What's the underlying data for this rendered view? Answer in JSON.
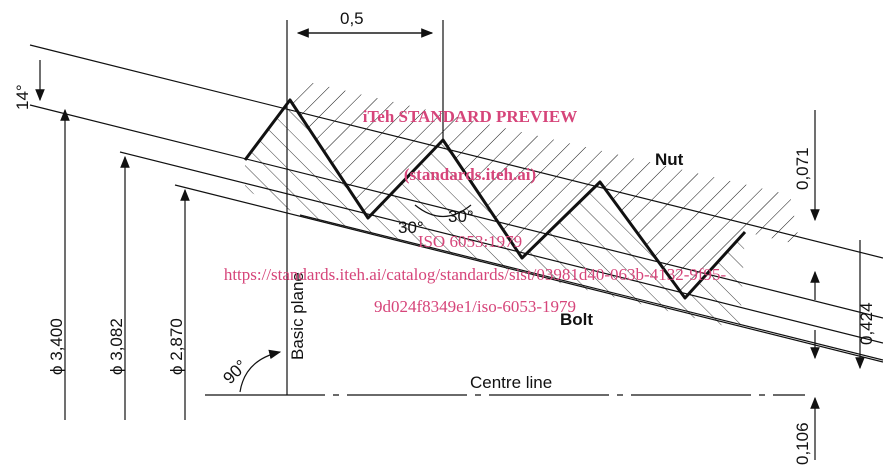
{
  "dimensions": {
    "pitch": "0,5",
    "flank_angle": "14°",
    "nut_depth": "0,071",
    "thread_depth": "0,424",
    "centre_offset": "0,106",
    "half_angle_left": "30°",
    "half_angle_right": "30°",
    "right_angle": "90°",
    "major_diameter": "ϕ 3,400",
    "pitch_diameter": "ϕ 3,082",
    "minor_diameter": "ϕ 2,870"
  },
  "labels": {
    "nut": "Nut",
    "bolt": "Bolt",
    "basic_plane": "Basic plane",
    "centre_line": "Centre line"
  },
  "watermark": {
    "title": "iTeh STANDARD PREVIEW",
    "subtitle": "(standards.iteh.ai)",
    "standard": "ISO 6053:1979",
    "url_line1": "https://standards.iteh.ai/catalog/standards/sist/03981d40-063b-4132-9f95-",
    "url_line2": "9d024f8349e1/iso-6053-1979"
  }
}
